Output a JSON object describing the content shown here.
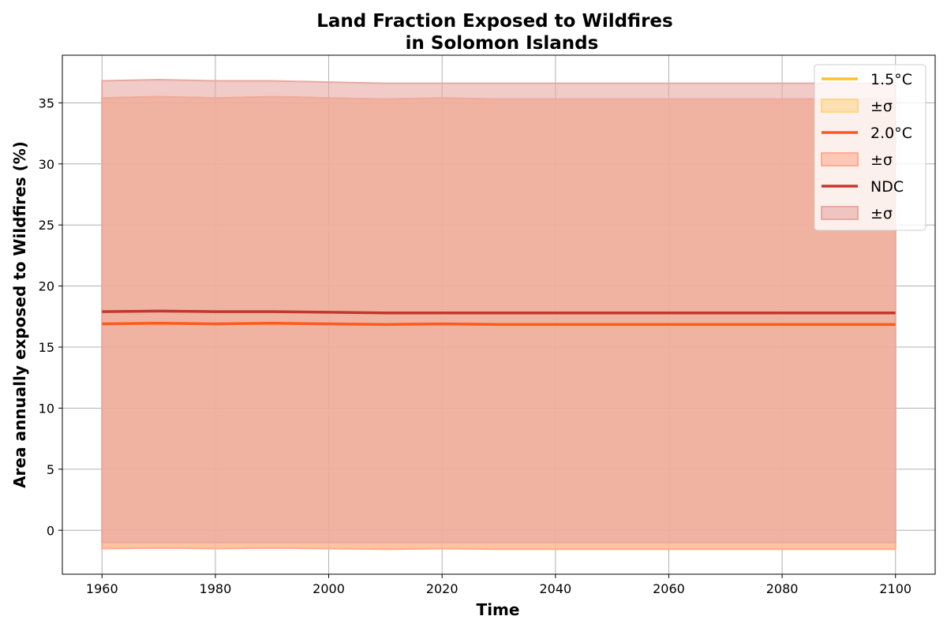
{
  "chart_data": {
    "type": "line",
    "title": [
      "Land Fraction Exposed to Wildfires",
      "in Solomon Islands"
    ],
    "xlabel": "Time",
    "ylabel": "Area annually exposed to Wildfires (%)",
    "xlim": [
      1953,
      2107
    ],
    "ylim": [
      -3.6,
      38.9
    ],
    "xticks": [
      1960,
      1980,
      2000,
      2020,
      2040,
      2060,
      2080,
      2100
    ],
    "yticks": [
      0,
      5,
      10,
      15,
      20,
      25,
      30,
      35
    ],
    "grid": true,
    "legend_position": "top-right",
    "x": [
      1960,
      1970,
      1980,
      1990,
      2000,
      2010,
      2020,
      2030,
      2040,
      2050,
      2060,
      2070,
      2080,
      2090,
      2100
    ],
    "series": [
      {
        "name": "1.5°C",
        "band_label": "±σ",
        "color": "#fbc02d",
        "band_color": "#fcd58a",
        "mean": [
          16.9,
          16.95,
          16.9,
          16.95,
          16.9,
          16.85,
          16.9,
          16.85,
          16.85,
          16.85,
          16.85,
          16.85,
          16.85,
          16.85,
          16.85
        ],
        "upper": [
          35.4,
          35.5,
          35.4,
          35.5,
          35.4,
          35.3,
          35.4,
          35.3,
          35.3,
          35.3,
          35.3,
          35.3,
          35.3,
          35.3,
          35.3
        ],
        "lower": [
          -1.5,
          -1.45,
          -1.5,
          -1.45,
          -1.5,
          -1.55,
          -1.5,
          -1.55,
          -1.55,
          -1.55,
          -1.55,
          -1.55,
          -1.55,
          -1.55,
          -1.55
        ]
      },
      {
        "name": "2.0°C",
        "band_label": "±σ",
        "color": "#ff5722",
        "band_color": "#ffab91",
        "mean": [
          16.9,
          16.95,
          16.9,
          16.95,
          16.9,
          16.85,
          16.9,
          16.85,
          16.85,
          16.85,
          16.85,
          16.85,
          16.85,
          16.85,
          16.85
        ],
        "upper": [
          35.4,
          35.5,
          35.4,
          35.5,
          35.4,
          35.3,
          35.4,
          35.3,
          35.3,
          35.3,
          35.3,
          35.3,
          35.3,
          35.3,
          35.3
        ],
        "lower": [
          -1.5,
          -1.45,
          -1.5,
          -1.45,
          -1.5,
          -1.55,
          -1.5,
          -1.55,
          -1.55,
          -1.55,
          -1.55,
          -1.55,
          -1.55,
          -1.55,
          -1.55
        ]
      },
      {
        "name": "NDC",
        "band_label": "±σ",
        "color": "#c0392b",
        "band_color": "#e6a9a3",
        "mean": [
          17.9,
          17.95,
          17.9,
          17.9,
          17.85,
          17.8,
          17.8,
          17.8,
          17.8,
          17.8,
          17.8,
          17.8,
          17.8,
          17.8,
          17.8
        ],
        "upper": [
          36.8,
          36.9,
          36.8,
          36.8,
          36.7,
          36.6,
          36.6,
          36.6,
          36.6,
          36.6,
          36.6,
          36.6,
          36.6,
          36.6,
          36.6
        ],
        "lower": [
          -1.0,
          -1.0,
          -1.0,
          -1.0,
          -1.0,
          -1.0,
          -1.0,
          -1.0,
          -1.0,
          -1.0,
          -1.0,
          -1.0,
          -1.0,
          -1.0,
          -1.0
        ]
      }
    ]
  }
}
